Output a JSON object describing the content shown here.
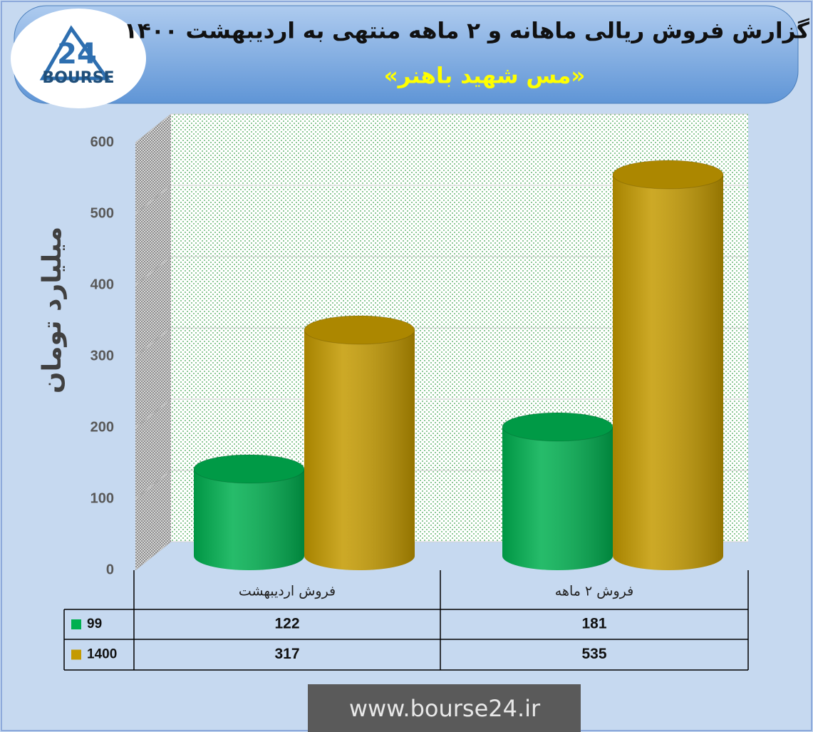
{
  "logo": {
    "mark": "24",
    "name": "BOURSE"
  },
  "chart_data": {
    "type": "bar",
    "title": "گزارش فروش ریالی ماهانه و ۲ ماهه منتهی به اردیبهشت ۱۴۰۰",
    "subtitle": "«مس شهید باهنر»",
    "y_label": "میلیارد تومان",
    "source": "www.bourse24.ir",
    "categories": [
      "فروش اردیبهشت",
      "فروش ۲ ماهه"
    ],
    "series": [
      {
        "name": "99",
        "color": "#00b050",
        "values": [
          122,
          181
        ]
      },
      {
        "name": "1400",
        "color": "#c49a00",
        "values": [
          317,
          535
        ]
      }
    ],
    "ylim": [
      0,
      600
    ],
    "yticks": [
      0,
      100,
      200,
      300,
      400,
      500,
      600
    ],
    "grid": true
  }
}
